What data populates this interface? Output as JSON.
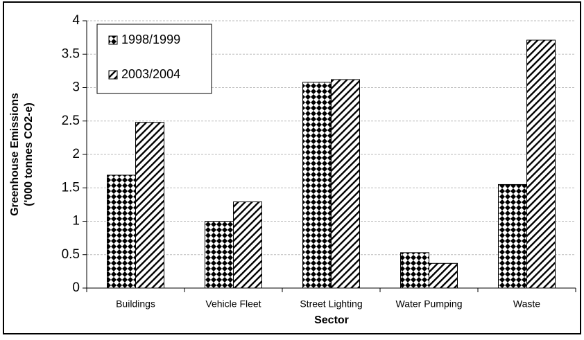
{
  "chart_data": {
    "type": "bar",
    "ylabel": [
      "Greenhouse Emissions",
      "('000 tonnes CO2-e)"
    ],
    "xlabel": "Sector",
    "categories": [
      "Buildings",
      "Vehicle Fleet",
      "Street Lighting",
      "Water Pumping",
      "Waste"
    ],
    "series": [
      {
        "name": "1998/1999",
        "color": "#000000",
        "pattern": "checker",
        "values": [
          1.69,
          1.0,
          3.08,
          0.53,
          1.55
        ]
      },
      {
        "name": "2003/2004",
        "color": "#000000",
        "pattern": "hatch",
        "values": [
          2.48,
          1.29,
          3.12,
          0.37,
          3.71
        ]
      }
    ],
    "ylim": [
      0,
      4
    ],
    "yticks": [
      0,
      0.5,
      1,
      1.5,
      2,
      2.5,
      3,
      3.5,
      4
    ],
    "grid": true,
    "legend": "upper left"
  }
}
